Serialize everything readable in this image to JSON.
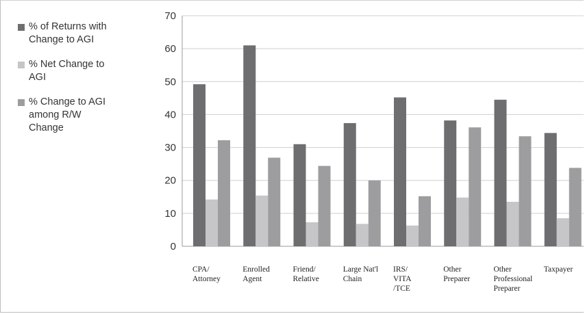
{
  "chart_data": {
    "type": "bar",
    "categories": [
      [
        "CPA/",
        "Attorney"
      ],
      [
        "Enrolled",
        "Agent"
      ],
      [
        "Friend/",
        "Relative"
      ],
      [
        "Large Nat'l",
        "Chain"
      ],
      [
        "IRS/",
        "VITA",
        "/TCE"
      ],
      [
        "Other",
        "Preparer"
      ],
      [
        "Other",
        "Professional",
        "Preparer"
      ],
      [
        "Taxpayer"
      ]
    ],
    "series": [
      {
        "name": "% of Returns with Change to AGI",
        "legend_lines": [
          "% of Returns with",
          "Change to AGI"
        ],
        "color": "#6e6e70",
        "values": [
          49.2,
          61,
          31,
          37.4,
          45.2,
          38.2,
          44.5,
          34.4
        ]
      },
      {
        "name": "% Net Change to AGI",
        "legend_lines": [
          "% Net Change to",
          "AGI"
        ],
        "color": "#c6c6c8",
        "values": [
          14.2,
          15.4,
          7.3,
          6.8,
          6.3,
          14.8,
          13.5,
          8.5
        ]
      },
      {
        "name": "% Change to AGI among R/W Change",
        "legend_lines": [
          "% Change to AGI",
          "among R/W",
          "Change"
        ],
        "color": "#9d9d9f",
        "values": [
          32.2,
          26.9,
          24.4,
          20,
          15.2,
          36.1,
          33.4,
          23.8
        ]
      }
    ],
    "yticks": [
      0,
      10,
      20,
      30,
      40,
      50,
      60,
      70
    ],
    "ylim": [
      0,
      70
    ],
    "grid": true,
    "legend_position": "left"
  }
}
